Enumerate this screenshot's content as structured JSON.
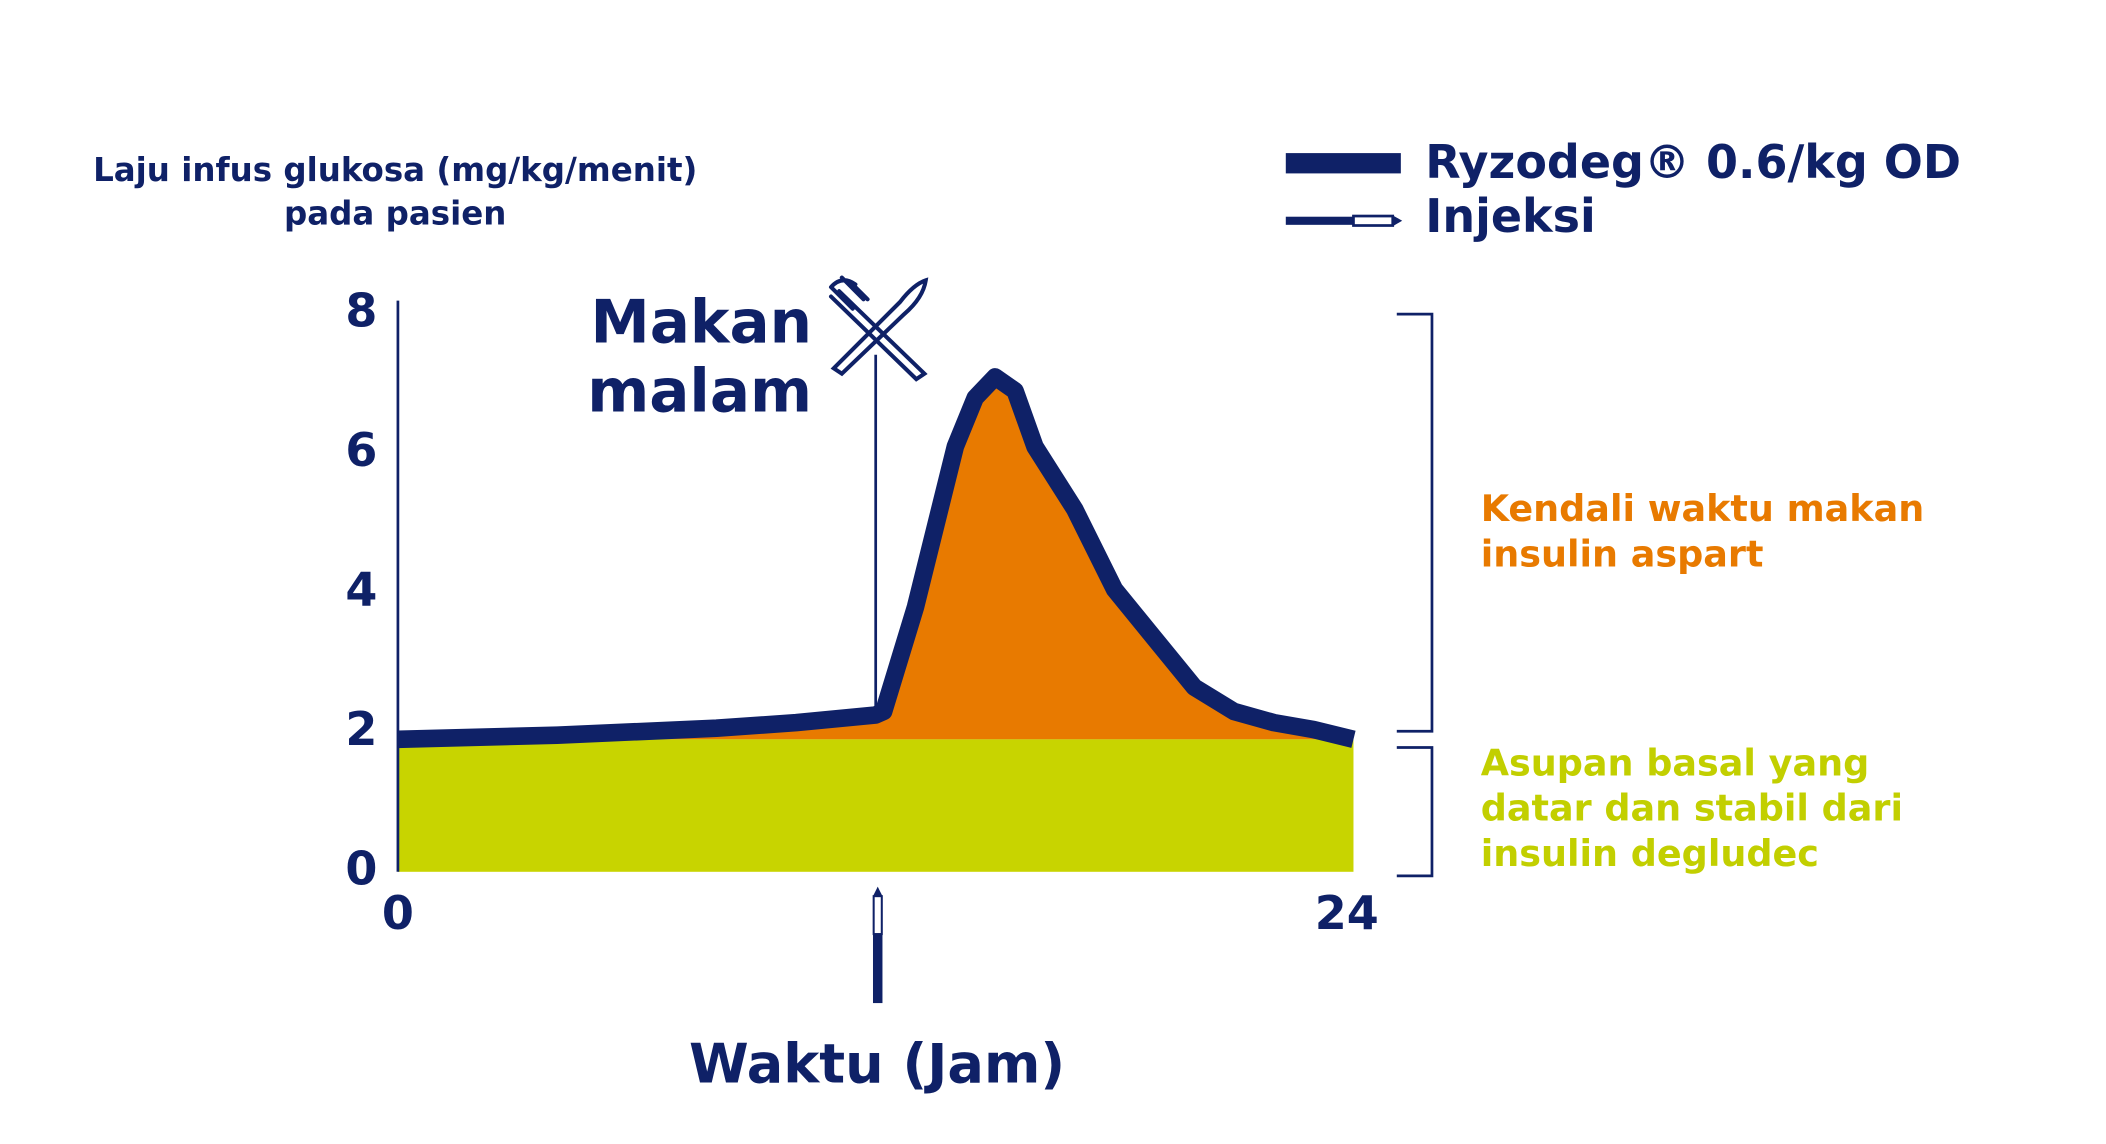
{
  "chart_data": {
    "type": "area",
    "ylabel": [
      "Laju infus glukosa (mg/kg/menit)",
      "pada pasien"
    ],
    "xlabel": "Waktu (Jam)",
    "x": [
      0,
      4,
      8,
      10,
      12,
      12.2,
      13,
      14,
      14.5,
      15,
      15.5,
      16,
      17,
      18,
      19,
      20,
      21,
      22,
      23,
      24
    ],
    "series": [
      {
        "name": "Ryzodeg® 0.6/kg OD",
        "color": "#0f2167",
        "values": [
          1.9,
          1.96,
          2.06,
          2.14,
          2.25,
          2.3,
          3.8,
          6.1,
          6.8,
          7.1,
          6.9,
          6.1,
          5.2,
          4.05,
          3.35,
          2.65,
          2.3,
          2.14,
          2.04,
          1.9
        ]
      }
    ],
    "meal_area_color": "#e87a00",
    "basal": {
      "value": 1.9,
      "color": "#c8d400"
    },
    "xlim": [
      0,
      24
    ],
    "xticks": [
      0,
      24
    ],
    "ylim": [
      0,
      8
    ],
    "yticks": [
      0,
      2,
      4,
      6,
      8
    ],
    "meal": {
      "label": [
        "Makan",
        "malam"
      ],
      "x": 12
    },
    "injection": {
      "label": "Injeksi",
      "x": 12
    },
    "bolus_label": {
      "lines": [
        "Kendali waktu makan",
        "insulin aspart"
      ],
      "color": "#e87a00"
    },
    "basal_label": {
      "lines": [
        "Asupan basal yang",
        "datar dan stabil dari",
        "insulin degludec"
      ],
      "color": "#c2cf00"
    }
  }
}
